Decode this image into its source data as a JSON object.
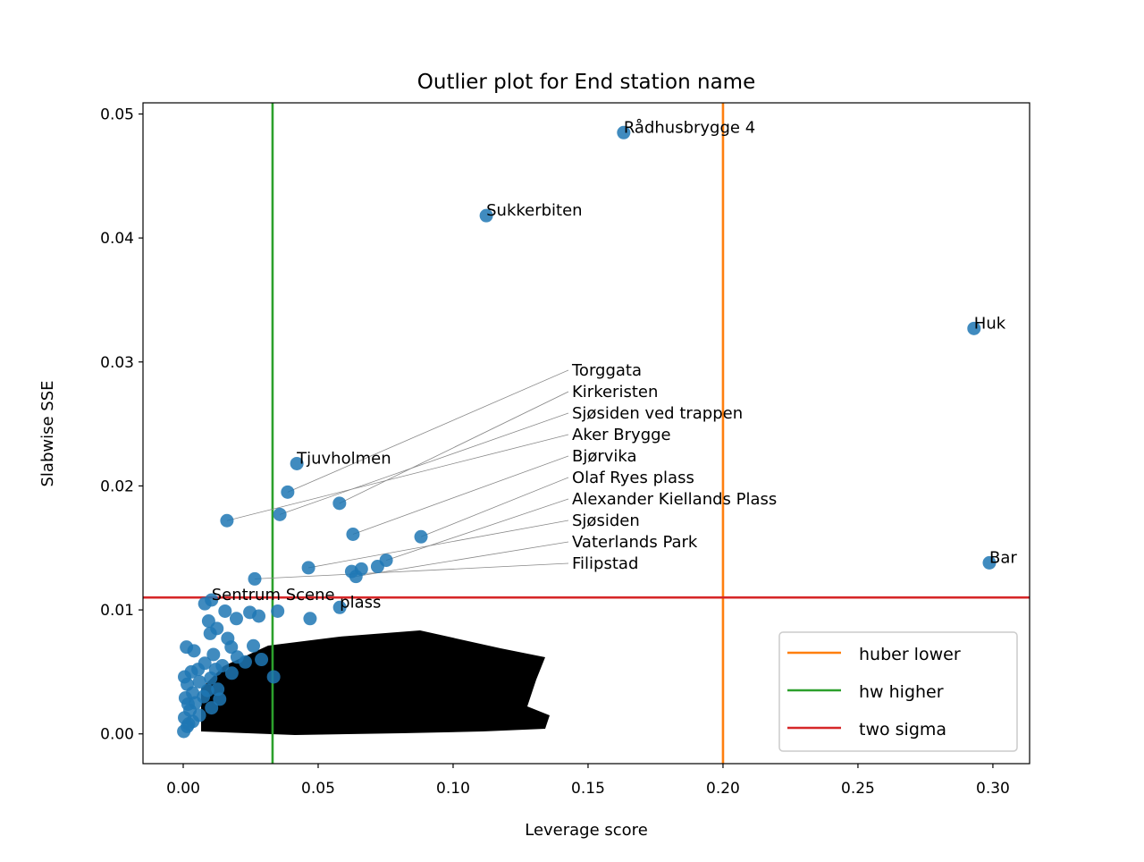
{
  "chart_data": {
    "type": "scatter",
    "title": "Outlier plot for End station name",
    "xlabel": "Leverage score",
    "ylabel": "Slabwise SSE",
    "xlim": [
      -0.0149,
      0.3136
    ],
    "ylim": [
      -0.0024,
      0.0509
    ],
    "xticks": [
      0.0,
      0.05,
      0.1,
      0.15,
      0.2,
      0.25,
      0.3
    ],
    "xtick_labels": [
      "0.00",
      "0.05",
      "0.10",
      "0.15",
      "0.20",
      "0.25",
      "0.30"
    ],
    "yticks": [
      0.0,
      0.01,
      0.02,
      0.03,
      0.04,
      0.05
    ],
    "ytick_labels": [
      "0.00",
      "0.01",
      "0.02",
      "0.03",
      "0.04",
      "0.05"
    ],
    "grid": false,
    "point_color": "#1f77b4",
    "labeled_points": [
      {
        "label": "Rådhusbrygge 4",
        "x": 0.1632,
        "y": 0.0485
      },
      {
        "label": "Sukkerbiten",
        "x": 0.1123,
        "y": 0.0418
      },
      {
        "label": "Huk",
        "x": 0.293,
        "y": 0.0327
      },
      {
        "label": "Bar",
        "x": 0.2987,
        "y": 0.0138
      },
      {
        "label": "Tjuvholmen",
        "x": 0.0421,
        "y": 0.0218
      },
      {
        "label": "Torggata",
        "x": 0.0387,
        "y": 0.0195
      },
      {
        "label": "Kirkeristen",
        "x": 0.0579,
        "y": 0.0186
      },
      {
        "label": "Sjøsiden ved trappen",
        "x": 0.0358,
        "y": 0.0177
      },
      {
        "label": "Aker Brygge",
        "x": 0.0162,
        "y": 0.0172
      },
      {
        "label": "Bjørvika",
        "x": 0.0629,
        "y": 0.0161
      },
      {
        "label": "Olaf Ryes plass",
        "x": 0.0881,
        "y": 0.0159
      },
      {
        "label": "Alexander Kiellands Plass",
        "x": 0.0752,
        "y": 0.014
      },
      {
        "label": "Sjøsiden",
        "x": 0.0464,
        "y": 0.0134
      },
      {
        "label": "Vaterlands Park",
        "x": 0.064,
        "y": 0.0127
      },
      {
        "label": "Filipstad",
        "x": 0.0265,
        "y": 0.0125
      },
      {
        "label": "Sentrum Scene",
        "x": 0.0105,
        "y": 0.0108
      },
      {
        "label": "plass",
        "x": 0.058,
        "y": 0.0102
      }
    ],
    "unlabeled_points": [
      [
        0.0624,
        0.0131
      ],
      [
        0.072,
        0.0135
      ],
      [
        0.066,
        0.0133
      ],
      [
        0.008,
        0.0105
      ],
      [
        0.0094,
        0.0091
      ],
      [
        0.0155,
        0.0099
      ],
      [
        0.0197,
        0.0093
      ],
      [
        0.0247,
        0.0098
      ],
      [
        0.035,
        0.0099
      ],
      [
        0.047,
        0.0093
      ],
      [
        0.028,
        0.0095
      ],
      [
        0.01,
        0.0081
      ],
      [
        0.0125,
        0.0085
      ],
      [
        0.0165,
        0.0077
      ],
      [
        0.0012,
        0.007
      ],
      [
        0.004,
        0.0067
      ],
      [
        0.0112,
        0.0064
      ],
      [
        0.0178,
        0.007
      ],
      [
        0.026,
        0.0071
      ],
      [
        0.029,
        0.006
      ],
      [
        0.0335,
        0.0046
      ],
      [
        0.023,
        0.0058
      ],
      [
        0.018,
        0.0049
      ],
      [
        0.0145,
        0.0055
      ],
      [
        0.008,
        0.0057
      ],
      [
        0.003,
        0.005
      ],
      [
        0.0005,
        0.0046
      ],
      [
        0.0015,
        0.004
      ],
      [
        0.006,
        0.0042
      ],
      [
        0.0102,
        0.0045
      ],
      [
        0.0128,
        0.0036
      ],
      [
        0.0035,
        0.0033
      ],
      [
        0.0008,
        0.0029
      ],
      [
        0.0045,
        0.0025
      ],
      [
        0.0075,
        0.003
      ],
      [
        0.0105,
        0.0021
      ],
      [
        0.0025,
        0.0019
      ],
      [
        0.0005,
        0.0013
      ],
      [
        0.0035,
        0.001
      ],
      [
        0.0015,
        0.0006
      ],
      [
        0.0002,
        0.0002
      ],
      [
        0.006,
        0.0015
      ],
      [
        0.009,
        0.0035
      ],
      [
        0.0135,
        0.0028
      ],
      [
        0.02,
        0.0062
      ],
      [
        0.0055,
        0.0052
      ],
      [
        0.012,
        0.0052
      ],
      [
        0.002,
        0.0008
      ],
      [
        0.0018,
        0.0024
      ]
    ],
    "reference_lines": [
      {
        "name": "huber lower",
        "orientation": "vertical",
        "value": 0.2,
        "color": "#ff7f0e"
      },
      {
        "name": "hw higher",
        "orientation": "vertical",
        "value": 0.0331,
        "color": "#2ca02c"
      },
      {
        "name": "two sigma",
        "orientation": "horizontal",
        "value": 0.011,
        "color": "#d62728"
      }
    ],
    "legend": {
      "placement": "lower-right",
      "entries": [
        "huber lower",
        "hw higher",
        "two sigma"
      ]
    }
  }
}
